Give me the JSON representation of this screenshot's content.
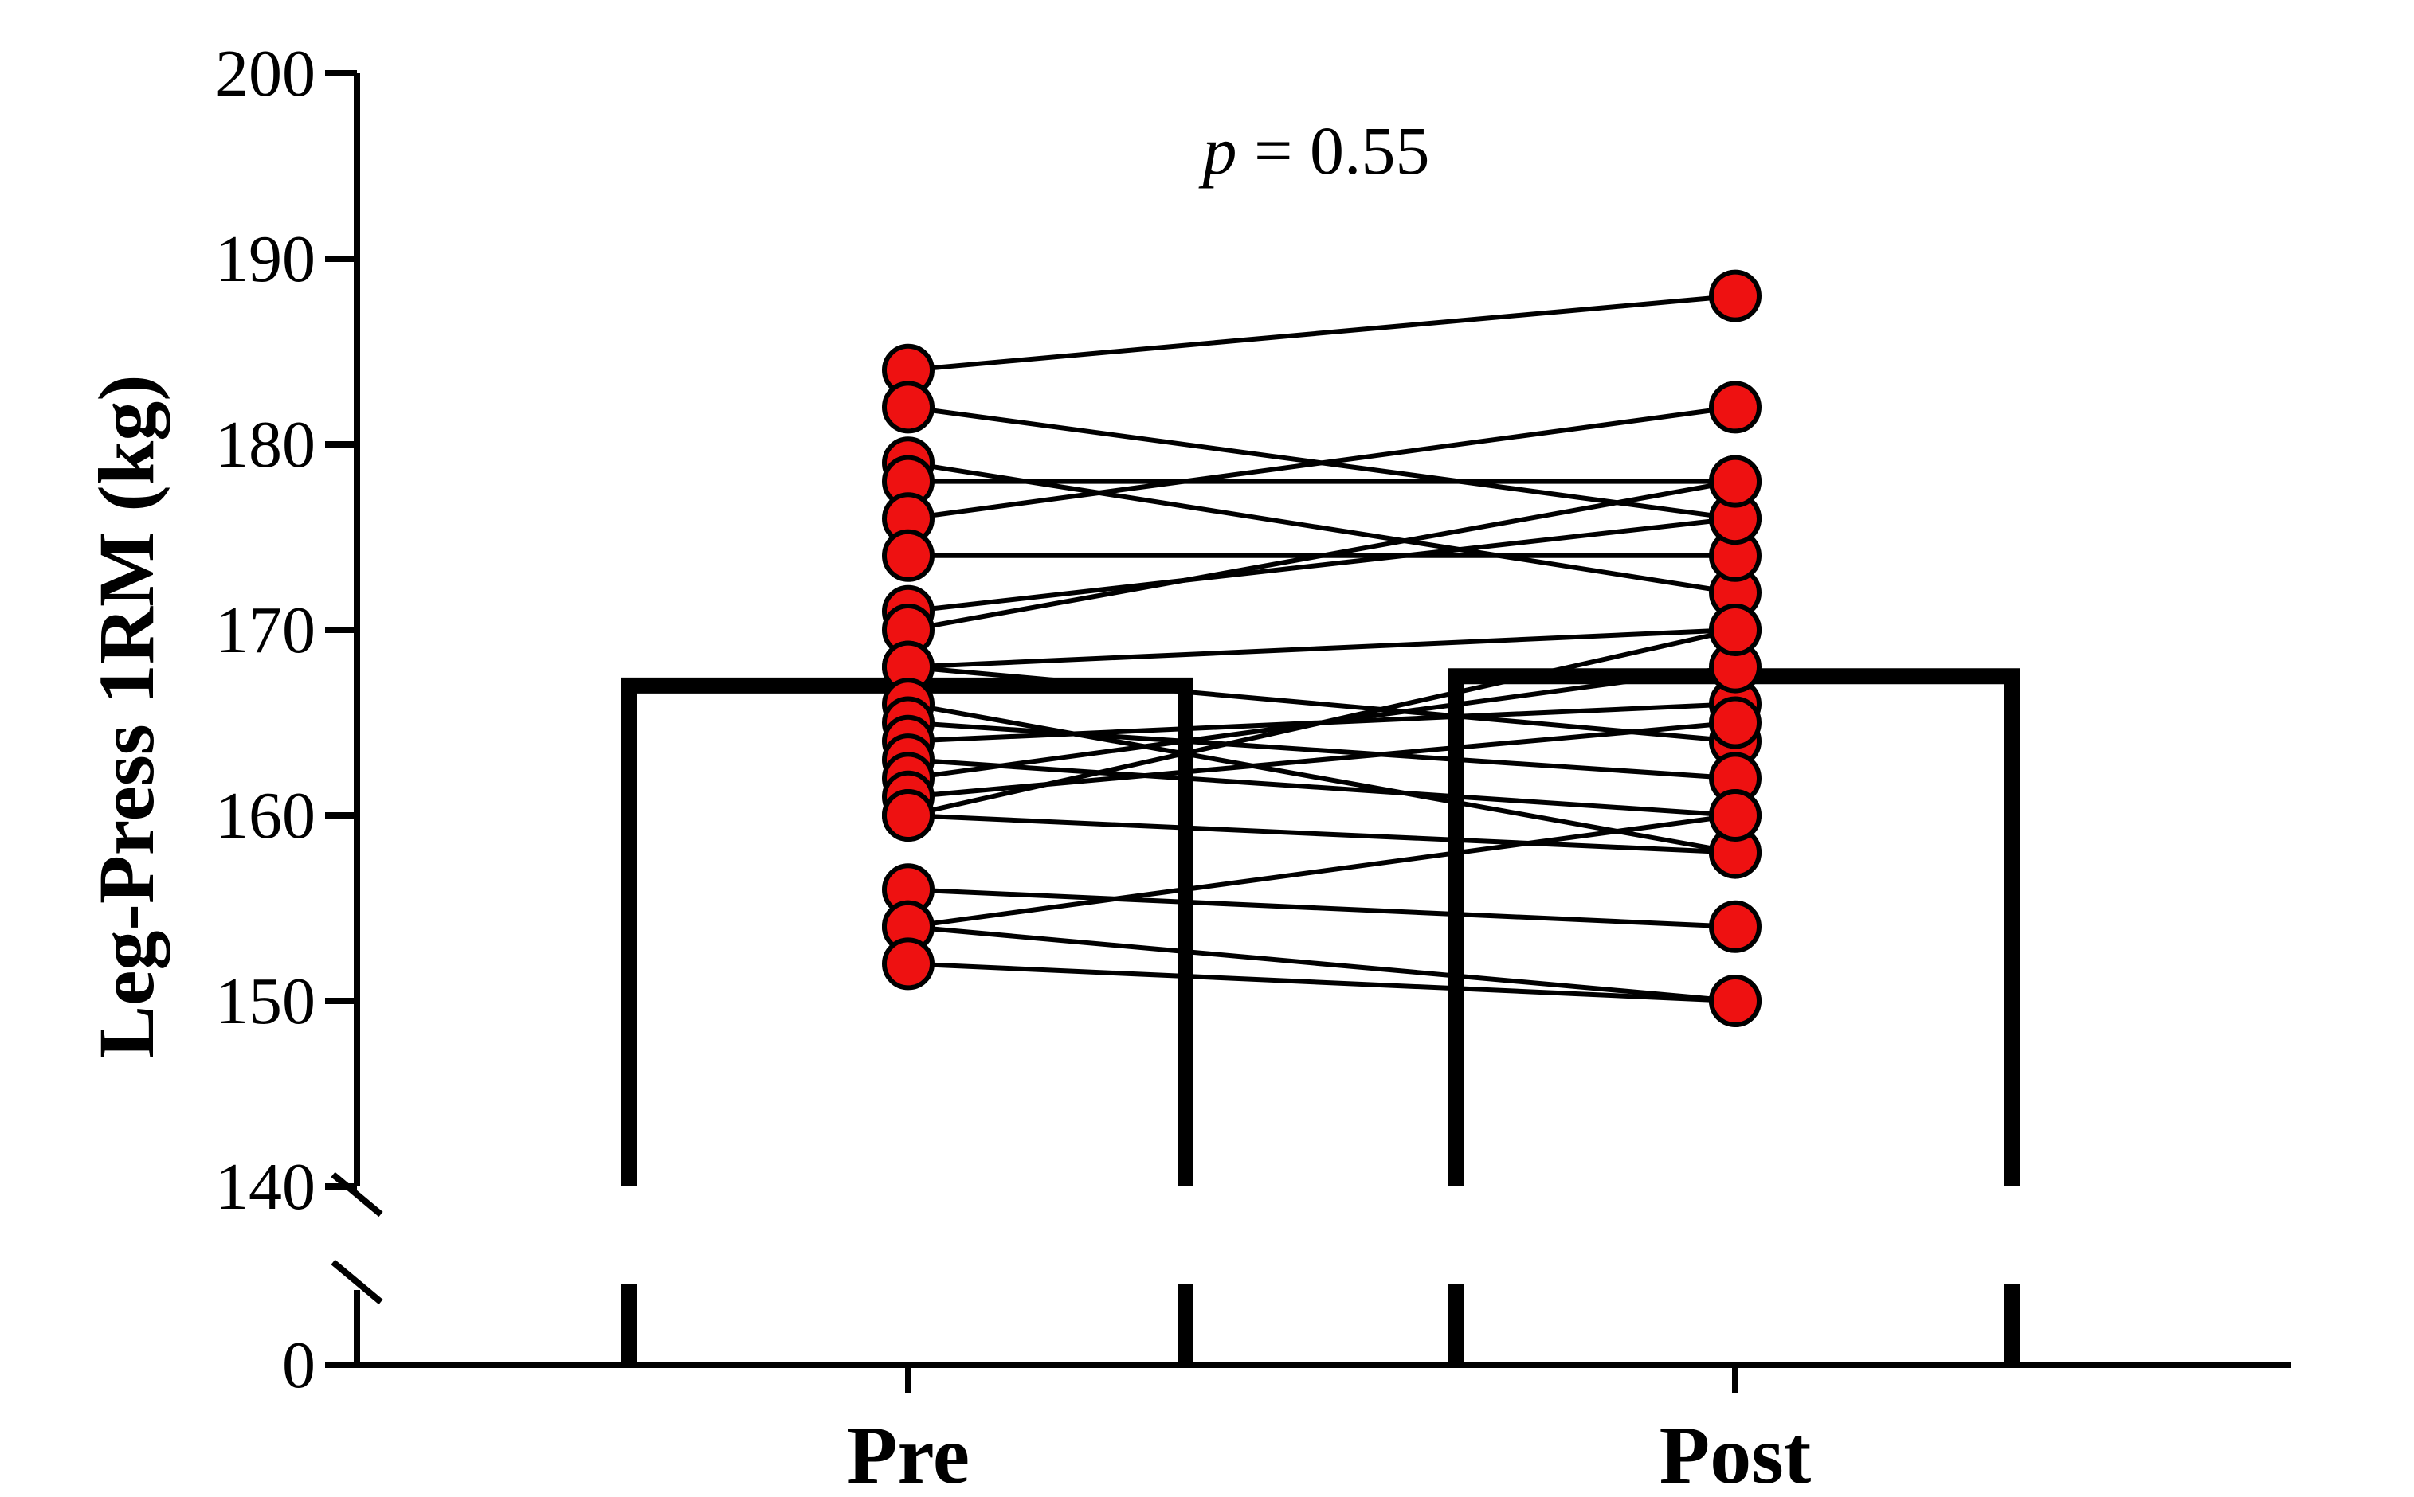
{
  "chart_data": {
    "type": "bar",
    "categories": [
      "Pre",
      "Post"
    ],
    "bar_values": [
      167,
      167.5
    ],
    "ylabel": "Leg-Press 1RM (kg)",
    "yticks_lower": [
      0
    ],
    "yticks_upper": [
      140,
      150,
      160,
      170,
      180,
      190,
      200
    ],
    "ylim_lower": [
      0,
      10
    ],
    "ylim_upper": [
      140,
      200
    ],
    "annotation": "p = 0.55",
    "annotation_p": "p",
    "annotation_rest": " = 0.55",
    "point_color": "#ee1111",
    "paired": [
      {
        "pre": 184,
        "post": 188
      },
      {
        "pre": 182,
        "post": 176
      },
      {
        "pre": 179,
        "post": 172
      },
      {
        "pre": 178,
        "post": 178
      },
      {
        "pre": 176,
        "post": 182
      },
      {
        "pre": 174,
        "post": 174
      },
      {
        "pre": 171,
        "post": 176
      },
      {
        "pre": 170,
        "post": 178
      },
      {
        "pre": 168,
        "post": 164
      },
      {
        "pre": 168,
        "post": 170
      },
      {
        "pre": 166,
        "post": 158
      },
      {
        "pre": 165,
        "post": 162
      },
      {
        "pre": 164,
        "post": 166
      },
      {
        "pre": 163,
        "post": 160
      },
      {
        "pre": 162,
        "post": 168
      },
      {
        "pre": 161,
        "post": 165
      },
      {
        "pre": 160,
        "post": 170
      },
      {
        "pre": 160,
        "post": 158
      },
      {
        "pre": 156,
        "post": 154
      },
      {
        "pre": 154,
        "post": 160
      },
      {
        "pre": 154,
        "post": 150
      },
      {
        "pre": 152,
        "post": 150
      }
    ]
  }
}
